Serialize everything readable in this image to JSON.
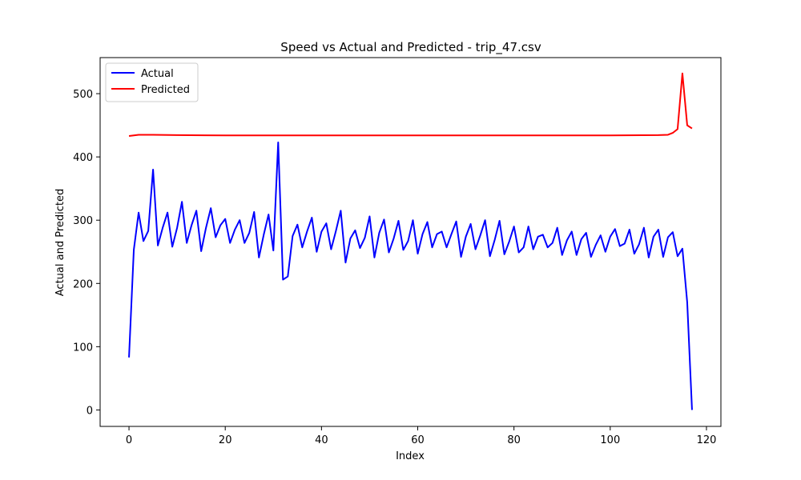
{
  "chart_data": {
    "type": "line",
    "title": "Speed vs Actual and Predicted - trip_47.csv",
    "xlabel": "Index",
    "ylabel": "Actual and Predicted",
    "xlim": [
      -6,
      123
    ],
    "ylim": [
      -26,
      557
    ],
    "xticks": [
      0,
      20,
      40,
      60,
      80,
      100,
      120
    ],
    "yticks": [
      0,
      100,
      200,
      300,
      400,
      500
    ],
    "grid": false,
    "legend_position": "upper-left",
    "series": [
      {
        "name": "Actual",
        "color": "#0000ff",
        "x": [
          0,
          1,
          2,
          3,
          4,
          5,
          6,
          7,
          8,
          9,
          10,
          11,
          12,
          13,
          14,
          15,
          16,
          17,
          18,
          19,
          20,
          21,
          22,
          23,
          24,
          25,
          26,
          27,
          28,
          29,
          30,
          31,
          32,
          33,
          34,
          35,
          36,
          37,
          38,
          39,
          40,
          41,
          42,
          43,
          44,
          45,
          46,
          47,
          48,
          49,
          50,
          51,
          52,
          53,
          54,
          55,
          56,
          57,
          58,
          59,
          60,
          61,
          62,
          63,
          64,
          65,
          66,
          67,
          68,
          69,
          70,
          71,
          72,
          73,
          74,
          75,
          76,
          77,
          78,
          79,
          80,
          81,
          82,
          83,
          84,
          85,
          86,
          87,
          88,
          89,
          90,
          91,
          92,
          93,
          94,
          95,
          96,
          97,
          98,
          99,
          100,
          101,
          102,
          103,
          104,
          105,
          106,
          107,
          108,
          109,
          110,
          111,
          112,
          113,
          114,
          115,
          116,
          117
        ],
        "values": [
          83,
          253,
          312,
          267,
          283,
          380,
          260,
          288,
          312,
          258,
          288,
          329,
          264,
          292,
          315,
          251,
          288,
          319,
          273,
          292,
          302,
          264,
          285,
          300,
          264,
          280,
          313,
          241,
          277,
          309,
          252,
          423,
          206,
          211,
          275,
          293,
          257,
          282,
          304,
          250,
          282,
          295,
          254,
          283,
          315,
          233,
          271,
          284,
          256,
          272,
          306,
          241,
          280,
          301,
          249,
          271,
          299,
          253,
          267,
          300,
          247,
          278,
          297,
          257,
          278,
          282,
          257,
          278,
          298,
          242,
          274,
          294,
          254,
          276,
          300,
          243,
          269,
          299,
          246,
          266,
          290,
          249,
          257,
          290,
          254,
          274,
          277,
          257,
          264,
          288,
          245,
          268,
          282,
          245,
          270,
          280,
          242,
          261,
          276,
          250,
          274,
          286,
          259,
          263,
          285,
          247,
          262,
          288,
          241,
          274,
          285,
          242,
          273,
          281,
          243,
          255,
          170,
          0
        ]
      },
      {
        "name": "Predicted",
        "color": "#ff0000",
        "x": [
          0,
          2,
          5,
          10,
          20,
          40,
          60,
          80,
          100,
          110,
          112,
          113,
          114,
          115,
          116,
          117
        ],
        "values": [
          433,
          435,
          435,
          434.5,
          434,
          434,
          434,
          434,
          434,
          434.5,
          435,
          438,
          444,
          532,
          450,
          445
        ]
      }
    ]
  }
}
